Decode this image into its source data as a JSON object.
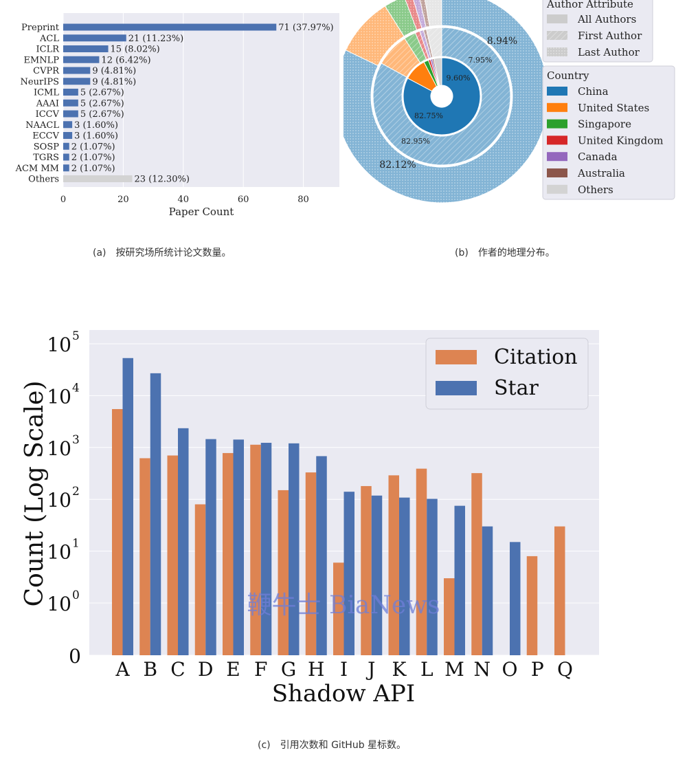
{
  "captions": {
    "a_tag": "(a)",
    "a_text": "按研究场所统计论文数量。",
    "b_tag": "(b)",
    "b_text": "作者的地理分布。",
    "c_tag": "(c)",
    "c_text": "引用次数和 GitHub 星标数。"
  },
  "watermark": "鞭牛士 BiaNews",
  "colors": {
    "panel_bg": "#eaeaf2",
    "bar_blue": "#4c72b0",
    "others_gray": "#d3d3d3",
    "citation": "#dd8452",
    "star": "#4c72b0",
    "china": "#1f77b4",
    "united_states": "#ff7f0e",
    "singapore": "#2ca02c",
    "united_kingdom": "#d62728",
    "canada": "#9467bd",
    "australia": "#8c564b",
    "others": "#d3d3d3"
  },
  "chart_data": [
    {
      "id": "venue",
      "type": "bar",
      "orientation": "horizontal",
      "categories": [
        "Preprint",
        "ACL",
        "ICLR",
        "EMNLP",
        "CVPR",
        "NeurIPS",
        "ICML",
        "AAAI",
        "ICCV",
        "NAACL",
        "ECCV",
        "SOSP",
        "TGRS",
        "ACM MM",
        "Others"
      ],
      "values": [
        71,
        21,
        15,
        12,
        9,
        9,
        5,
        5,
        5,
        3,
        3,
        2,
        2,
        2,
        23
      ],
      "labels": [
        "71 (37.97%)",
        "21 (11.23%)",
        "15 (8.02%)",
        "12 (6.42%)",
        "9 (4.81%)",
        "9 (4.81%)",
        "5 (2.67%)",
        "5 (2.67%)",
        "5 (2.67%)",
        "3 (1.60%)",
        "3 (1.60%)",
        "2 (1.07%)",
        "2 (1.07%)",
        "2 (1.07%)",
        "23 (12.30%)"
      ],
      "xlabel": "Paper Count",
      "xlim": [
        0,
        92
      ],
      "xticks": [
        0,
        20,
        40,
        60,
        80
      ],
      "grid": true
    },
    {
      "id": "geography",
      "type": "pie",
      "style": "nested donut",
      "rings": [
        {
          "name": "All Authors",
          "values": [
            82.12,
            8.94,
            3.2,
            1.2,
            1.0,
            0.8,
            2.74
          ],
          "labels": [
            "82.12%",
            "8.94%"
          ]
        },
        {
          "name": "First Author",
          "values": [
            82.95,
            7.95,
            2.8,
            1.1,
            0.9,
            0.7,
            3.6
          ],
          "labels": [
            "82.95%",
            "7.95%"
          ]
        },
        {
          "name": "Last Author",
          "values": [
            82.75,
            9.6,
            2.0,
            0.9,
            0.8,
            0.6,
            3.35
          ],
          "labels": [
            "82.75%",
            "9.60%"
          ]
        }
      ],
      "categories": [
        "China",
        "United States",
        "Singapore",
        "United Kingdom",
        "Canada",
        "Australia",
        "Others"
      ],
      "legends": [
        {
          "title": "Author Attribute",
          "entries": [
            "All Authors",
            "First Author",
            "Last Author"
          ]
        },
        {
          "title": "Country",
          "entries": [
            "China",
            "United States",
            "Singapore",
            "United Kingdom",
            "Canada",
            "Australia",
            "Others"
          ]
        }
      ]
    },
    {
      "id": "citations",
      "type": "bar",
      "categories": [
        "A",
        "B",
        "C",
        "D",
        "E",
        "F",
        "G",
        "H",
        "I",
        "J",
        "K",
        "L",
        "M",
        "N",
        "O",
        "P",
        "Q"
      ],
      "series": [
        {
          "name": "Citation",
          "values": [
            5500,
            620,
            700,
            80,
            780,
            1130,
            150,
            330,
            6,
            180,
            290,
            390,
            3,
            320,
            0,
            8,
            30
          ]
        },
        {
          "name": "Star",
          "values": [
            53000,
            27000,
            2350,
            1450,
            1420,
            1230,
            1200,
            680,
            140,
            118,
            108,
            102,
            75,
            30,
            15,
            0,
            0
          ]
        }
      ],
      "xlabel": "Shadow API",
      "ylabel": "Count (Log Scale)",
      "yscale": "log",
      "yticks": [
        "0",
        "10",
        "10",
        "10",
        "10",
        "10",
        "10"
      ],
      "ytick_exponents": [
        "",
        "0",
        "1",
        "2",
        "3",
        "4",
        "5"
      ],
      "legend_position": "top-right",
      "grid": true
    }
  ]
}
